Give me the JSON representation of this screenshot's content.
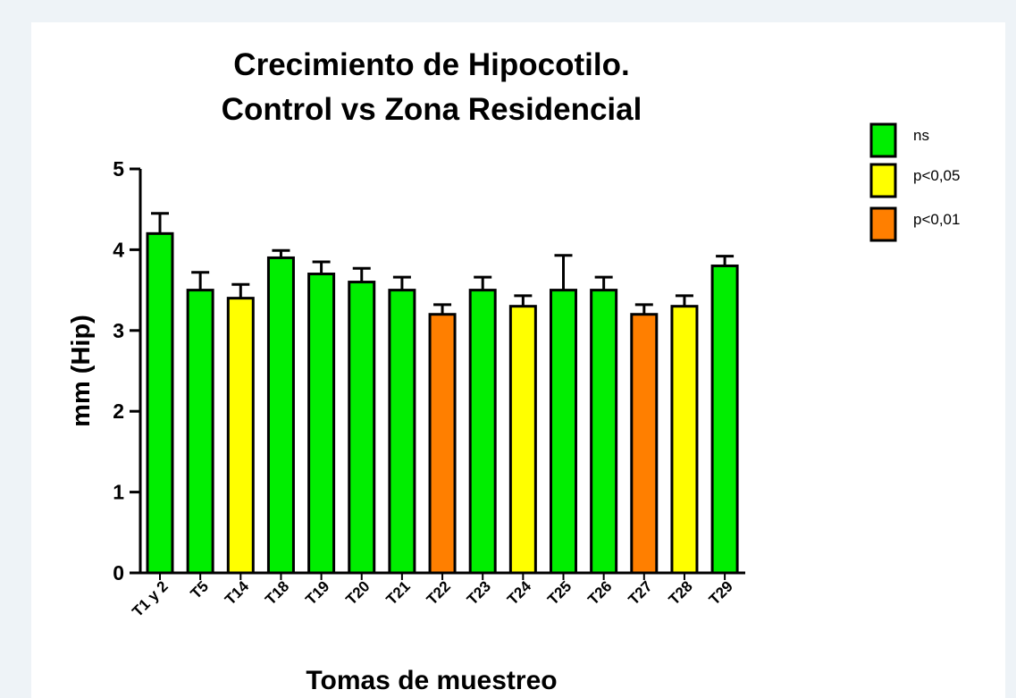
{
  "chart_data": {
    "type": "bar",
    "title": [
      "Crecimiento de Hipocotilo.",
      "Control vs Zona Residencial"
    ],
    "xlabel": "Tomas de muestreo",
    "ylabel": "mm (Hip)",
    "categories": [
      "T1 y 2",
      "T5",
      "T14",
      "T18",
      "T19",
      "T20",
      "T21",
      "T22",
      "T23",
      "T24",
      "T25",
      "T26",
      "T27",
      "T28",
      "T29"
    ],
    "series": [
      {
        "name": "ns",
        "color": "#00ee00",
        "values": [
          4.2,
          3.5,
          null,
          3.9,
          3.7,
          3.6,
          3.5,
          null,
          3.5,
          null,
          3.5,
          3.5,
          null,
          null,
          3.8
        ],
        "errors": [
          0.25,
          0.22,
          null,
          0.09,
          0.15,
          0.17,
          0.16,
          null,
          0.16,
          null,
          0.43,
          0.16,
          null,
          null,
          0.12
        ]
      },
      {
        "name": "p<0,05",
        "color": "#ffff00",
        "values": [
          null,
          null,
          3.4,
          null,
          null,
          null,
          null,
          null,
          null,
          3.3,
          null,
          null,
          null,
          3.3,
          null
        ],
        "errors": [
          null,
          null,
          0.17,
          null,
          null,
          null,
          null,
          null,
          null,
          0.13,
          null,
          null,
          null,
          0.13,
          null
        ]
      },
      {
        "name": "p<0,01",
        "color": "#ff7f00",
        "values": [
          null,
          null,
          null,
          null,
          null,
          null,
          null,
          3.2,
          null,
          null,
          null,
          null,
          3.2,
          null,
          null
        ],
        "errors": [
          null,
          null,
          null,
          null,
          null,
          null,
          null,
          0.12,
          null,
          null,
          null,
          null,
          0.12,
          null,
          null
        ]
      }
    ],
    "ylim": [
      0,
      5
    ],
    "yticks": [
      0,
      1,
      2,
      3,
      4,
      5
    ],
    "grid": false,
    "legend": "right"
  }
}
